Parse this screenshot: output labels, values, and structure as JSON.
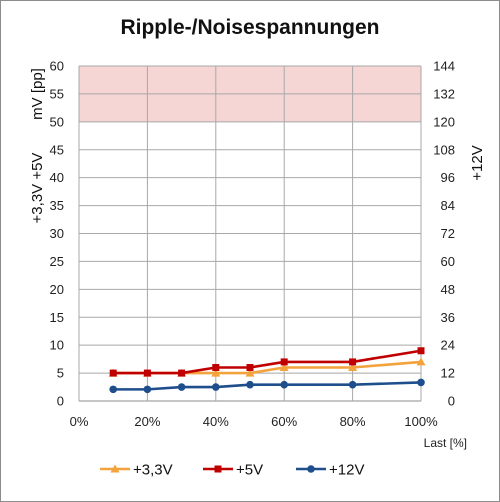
{
  "chart_data": {
    "type": "line",
    "title": "Ripple-/Noisespannungen",
    "xlabel": "Last [%]",
    "ylabel_left_top": "mV [pp]",
    "ylabel_left_bottom": "+3,3V +5V",
    "ylabel_right": "+12V",
    "xlim": [
      0,
      100
    ],
    "ylim": [
      0,
      60
    ],
    "y2lim": [
      0,
      144
    ],
    "x_ticks": [
      0,
      20,
      40,
      60,
      80,
      100
    ],
    "x_tick_labels": [
      "0%",
      "20%",
      "40%",
      "60%",
      "80%",
      "100%"
    ],
    "y_ticks": [
      0,
      5,
      10,
      15,
      20,
      25,
      30,
      35,
      40,
      45,
      50,
      55,
      60
    ],
    "y2_ticks": [
      0,
      12,
      24,
      36,
      48,
      60,
      72,
      84,
      96,
      108,
      120,
      132,
      144
    ],
    "grid": true,
    "limit_band": {
      "y_from": 50,
      "y_to": 60,
      "color": "#f6d5d5"
    },
    "legend_position": "bottom",
    "series": [
      {
        "name": "+3,3V",
        "axis": "left",
        "color": "#f4a23c",
        "marker": "triangle",
        "x": [
          10,
          20,
          30,
          40,
          50,
          60,
          80,
          100
        ],
        "y": [
          5,
          5,
          5,
          5,
          5,
          6,
          6,
          7
        ]
      },
      {
        "name": "+5V",
        "axis": "left",
        "color": "#c00000",
        "marker": "square",
        "x": [
          10,
          20,
          30,
          40,
          50,
          60,
          80,
          100
        ],
        "y": [
          5,
          5,
          5,
          6,
          6,
          7,
          7,
          9
        ]
      },
      {
        "name": "+12V",
        "axis": "right",
        "color": "#1f4e8c",
        "marker": "circle",
        "x": [
          10,
          20,
          30,
          40,
          50,
          60,
          80,
          100
        ],
        "y": [
          5,
          5,
          6,
          6,
          7,
          7,
          7,
          8
        ]
      }
    ]
  }
}
